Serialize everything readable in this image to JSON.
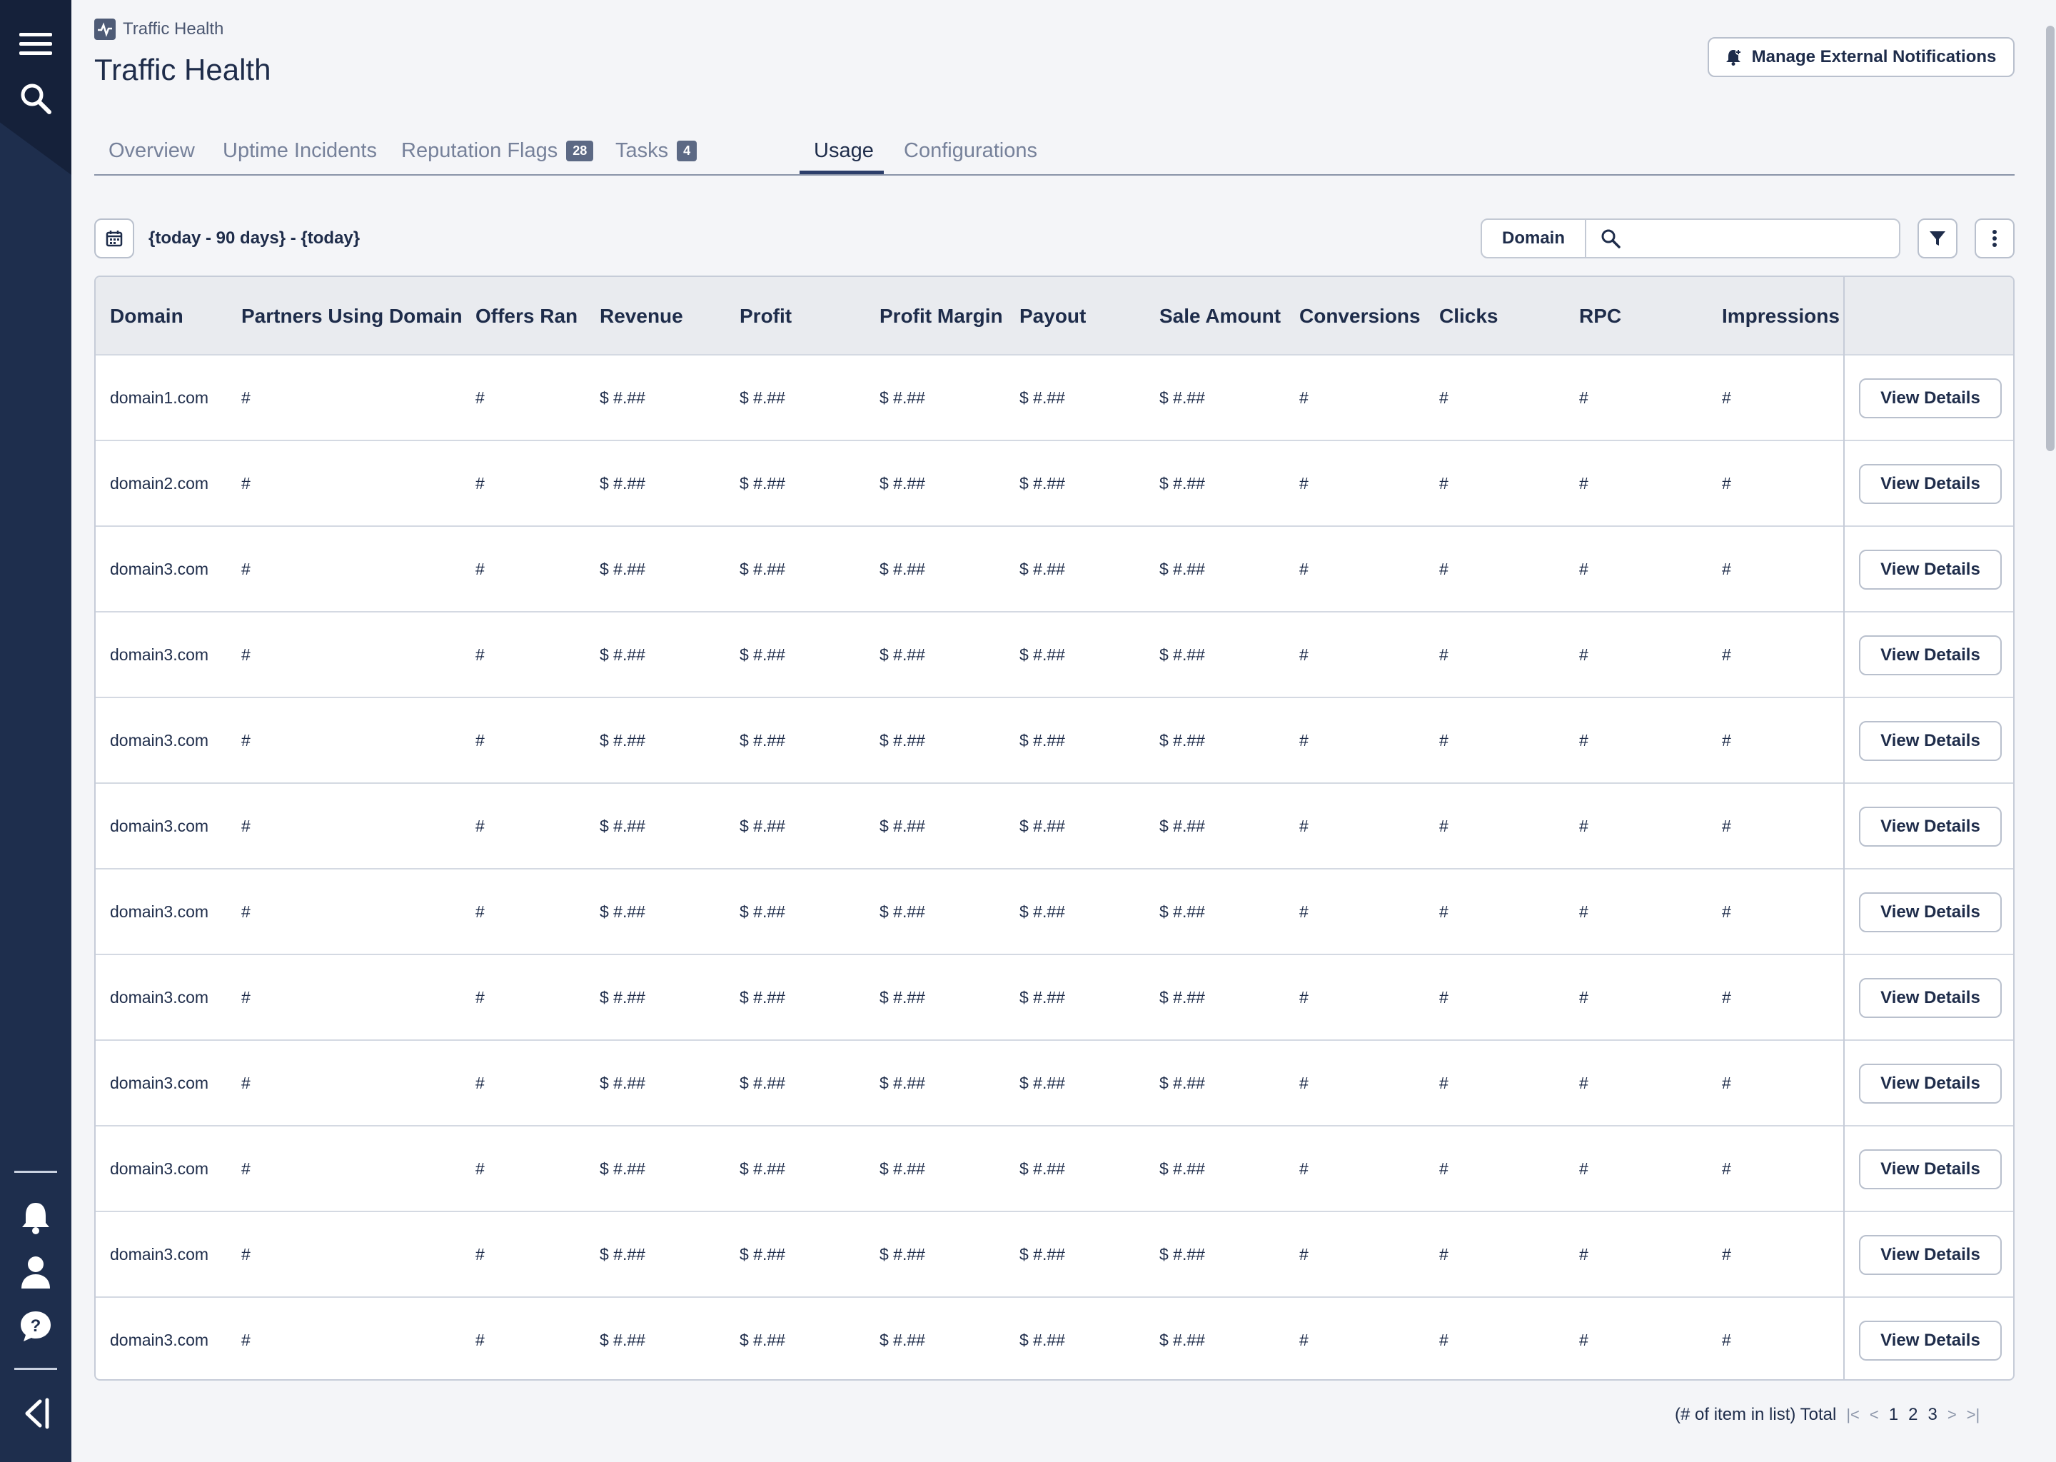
{
  "breadcrumb": {
    "label": "Traffic Health"
  },
  "page": {
    "title": "Traffic Health"
  },
  "header": {
    "notifications_button": "Manage External Notifications"
  },
  "tabs": [
    {
      "label": "Overview"
    },
    {
      "label": "Uptime Incidents"
    },
    {
      "label": "Reputation Flags",
      "badge": "28"
    },
    {
      "label": "Tasks",
      "badge": "4"
    },
    {
      "label": "Usage"
    },
    {
      "label": "Configurations"
    }
  ],
  "toolbar": {
    "date_range": "{today - 90 days} - {today}",
    "search_field": "Domain",
    "search_placeholder": ""
  },
  "table": {
    "columns": [
      "Domain",
      "Partners Using Domain",
      "Offers Ran",
      "Revenue",
      "Profit",
      "Profit Margin",
      "Payout",
      "Sale Amount",
      "Conversions",
      "Clicks",
      "RPC",
      "Impressions"
    ],
    "action_label": "View Details",
    "rows": [
      [
        "domain1.com",
        "#",
        "#",
        "$ #.##",
        "$ #.##",
        "$ #.##",
        "$ #.##",
        "$ #.##",
        "#",
        "#",
        "#",
        "#"
      ],
      [
        "domain2.com",
        "#",
        "#",
        "$ #.##",
        "$ #.##",
        "$ #.##",
        "$ #.##",
        "$ #.##",
        "#",
        "#",
        "#",
        "#"
      ],
      [
        "domain3.com",
        "#",
        "#",
        "$ #.##",
        "$ #.##",
        "$ #.##",
        "$ #.##",
        "$ #.##",
        "#",
        "#",
        "#",
        "#"
      ],
      [
        "domain3.com",
        "#",
        "#",
        "$ #.##",
        "$ #.##",
        "$ #.##",
        "$ #.##",
        "$ #.##",
        "#",
        "#",
        "#",
        "#"
      ],
      [
        "domain3.com",
        "#",
        "#",
        "$ #.##",
        "$ #.##",
        "$ #.##",
        "$ #.##",
        "$ #.##",
        "#",
        "#",
        "#",
        "#"
      ],
      [
        "domain3.com",
        "#",
        "#",
        "$ #.##",
        "$ #.##",
        "$ #.##",
        "$ #.##",
        "$ #.##",
        "#",
        "#",
        "#",
        "#"
      ],
      [
        "domain3.com",
        "#",
        "#",
        "$ #.##",
        "$ #.##",
        "$ #.##",
        "$ #.##",
        "$ #.##",
        "#",
        "#",
        "#",
        "#"
      ],
      [
        "domain3.com",
        "#",
        "#",
        "$ #.##",
        "$ #.##",
        "$ #.##",
        "$ #.##",
        "$ #.##",
        "#",
        "#",
        "#",
        "#"
      ],
      [
        "domain3.com",
        "#",
        "#",
        "$ #.##",
        "$ #.##",
        "$ #.##",
        "$ #.##",
        "$ #.##",
        "#",
        "#",
        "#",
        "#"
      ],
      [
        "domain3.com",
        "#",
        "#",
        "$ #.##",
        "$ #.##",
        "$ #.##",
        "$ #.##",
        "$ #.##",
        "#",
        "#",
        "#",
        "#"
      ],
      [
        "domain3.com",
        "#",
        "#",
        "$ #.##",
        "$ #.##",
        "$ #.##",
        "$ #.##",
        "$ #.##",
        "#",
        "#",
        "#",
        "#"
      ],
      [
        "domain3.com",
        "#",
        "#",
        "$ #.##",
        "$ #.##",
        "$ #.##",
        "$ #.##",
        "$ #.##",
        "#",
        "#",
        "#",
        "#"
      ]
    ]
  },
  "pagination": {
    "total_label": "(# of item in list) Total",
    "pages": [
      "1",
      "2",
      "3"
    ]
  },
  "sidebar": {
    "icons": [
      "menu-icon",
      "search-icon",
      "bell-icon",
      "user-icon",
      "help-icon",
      "collapse-icon"
    ]
  },
  "colors": {
    "sidebar": "#1e2e4d",
    "accent": "#2c3e6a",
    "badge": "#5c6984"
  }
}
